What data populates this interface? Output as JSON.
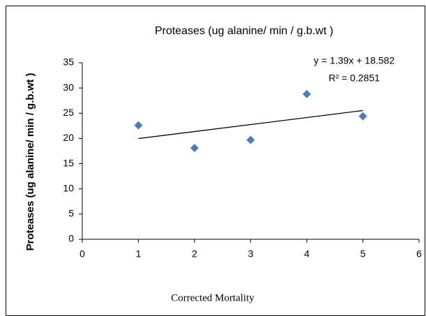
{
  "chart_data": {
    "type": "scatter",
    "title": "Proteases (ug alanine/ min / g.b.wt )",
    "x_label": "Corrected Mortality",
    "y_label": "Proteases (ug alanine/ min / g.b.wt )",
    "x": [
      1,
      2,
      3,
      4,
      5
    ],
    "values": [
      22.6,
      18.1,
      19.7,
      28.8,
      24.4
    ],
    "color": "#4a7ebb",
    "xlim": [
      0,
      6
    ],
    "xticks": [
      0,
      1,
      2,
      3,
      4,
      5,
      6
    ],
    "ylim": [
      0,
      35
    ],
    "yticks": [
      0,
      5,
      10,
      15,
      20,
      25,
      30,
      35
    ],
    "grid": false,
    "trendline": {
      "slope": 1.39,
      "intercept": 18.582,
      "equation": "y = 1.39x + 18.582",
      "r_squared": "R² = 0.2851"
    }
  }
}
